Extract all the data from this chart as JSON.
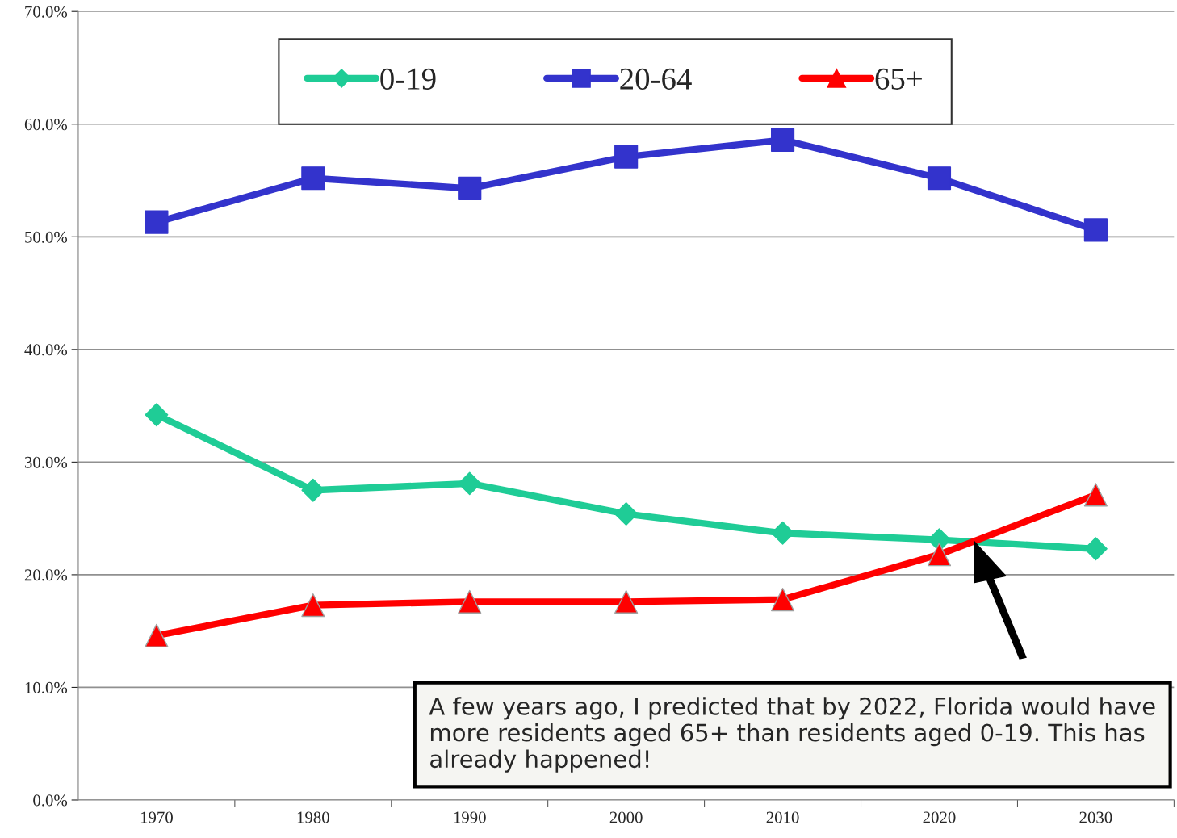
{
  "chart_data": {
    "type": "line",
    "categories": [
      "1970",
      "1980",
      "1990",
      "2000",
      "2010",
      "2020",
      "2030"
    ],
    "series": [
      {
        "name": "0-19",
        "color": "#1fcc96",
        "marker": "diamond",
        "values": [
          34.2,
          27.5,
          28.1,
          25.4,
          23.7,
          23.1,
          22.3
        ]
      },
      {
        "name": "20-64",
        "color": "#3333cc",
        "marker": "square",
        "values": [
          51.3,
          55.2,
          54.3,
          57.1,
          58.6,
          55.2,
          50.6
        ]
      },
      {
        "name": "65+",
        "color": "#ff0000",
        "marker": "triangle",
        "values": [
          14.6,
          17.3,
          17.6,
          17.6,
          17.8,
          21.8,
          27.1
        ]
      }
    ],
    "ylim": [
      0,
      70
    ],
    "yticks": [
      {
        "value": 0,
        "label": "0.0%"
      },
      {
        "value": 10,
        "label": "10.0%"
      },
      {
        "value": 20,
        "label": "20.0%"
      },
      {
        "value": 30,
        "label": "30.0%"
      },
      {
        "value": 40,
        "label": "40.0%"
      },
      {
        "value": 50,
        "label": "50.0%"
      },
      {
        "value": 60,
        "label": "60.0%"
      },
      {
        "value": 70,
        "label": "70.0%"
      }
    ],
    "grid": "y",
    "legend": "top",
    "line_style": "solid",
    "annotations": [
      "A few years ago, I predicted that by 2022, Florida would have more residents aged 65+ than residents aged 0-19. This has already happened!"
    ]
  }
}
